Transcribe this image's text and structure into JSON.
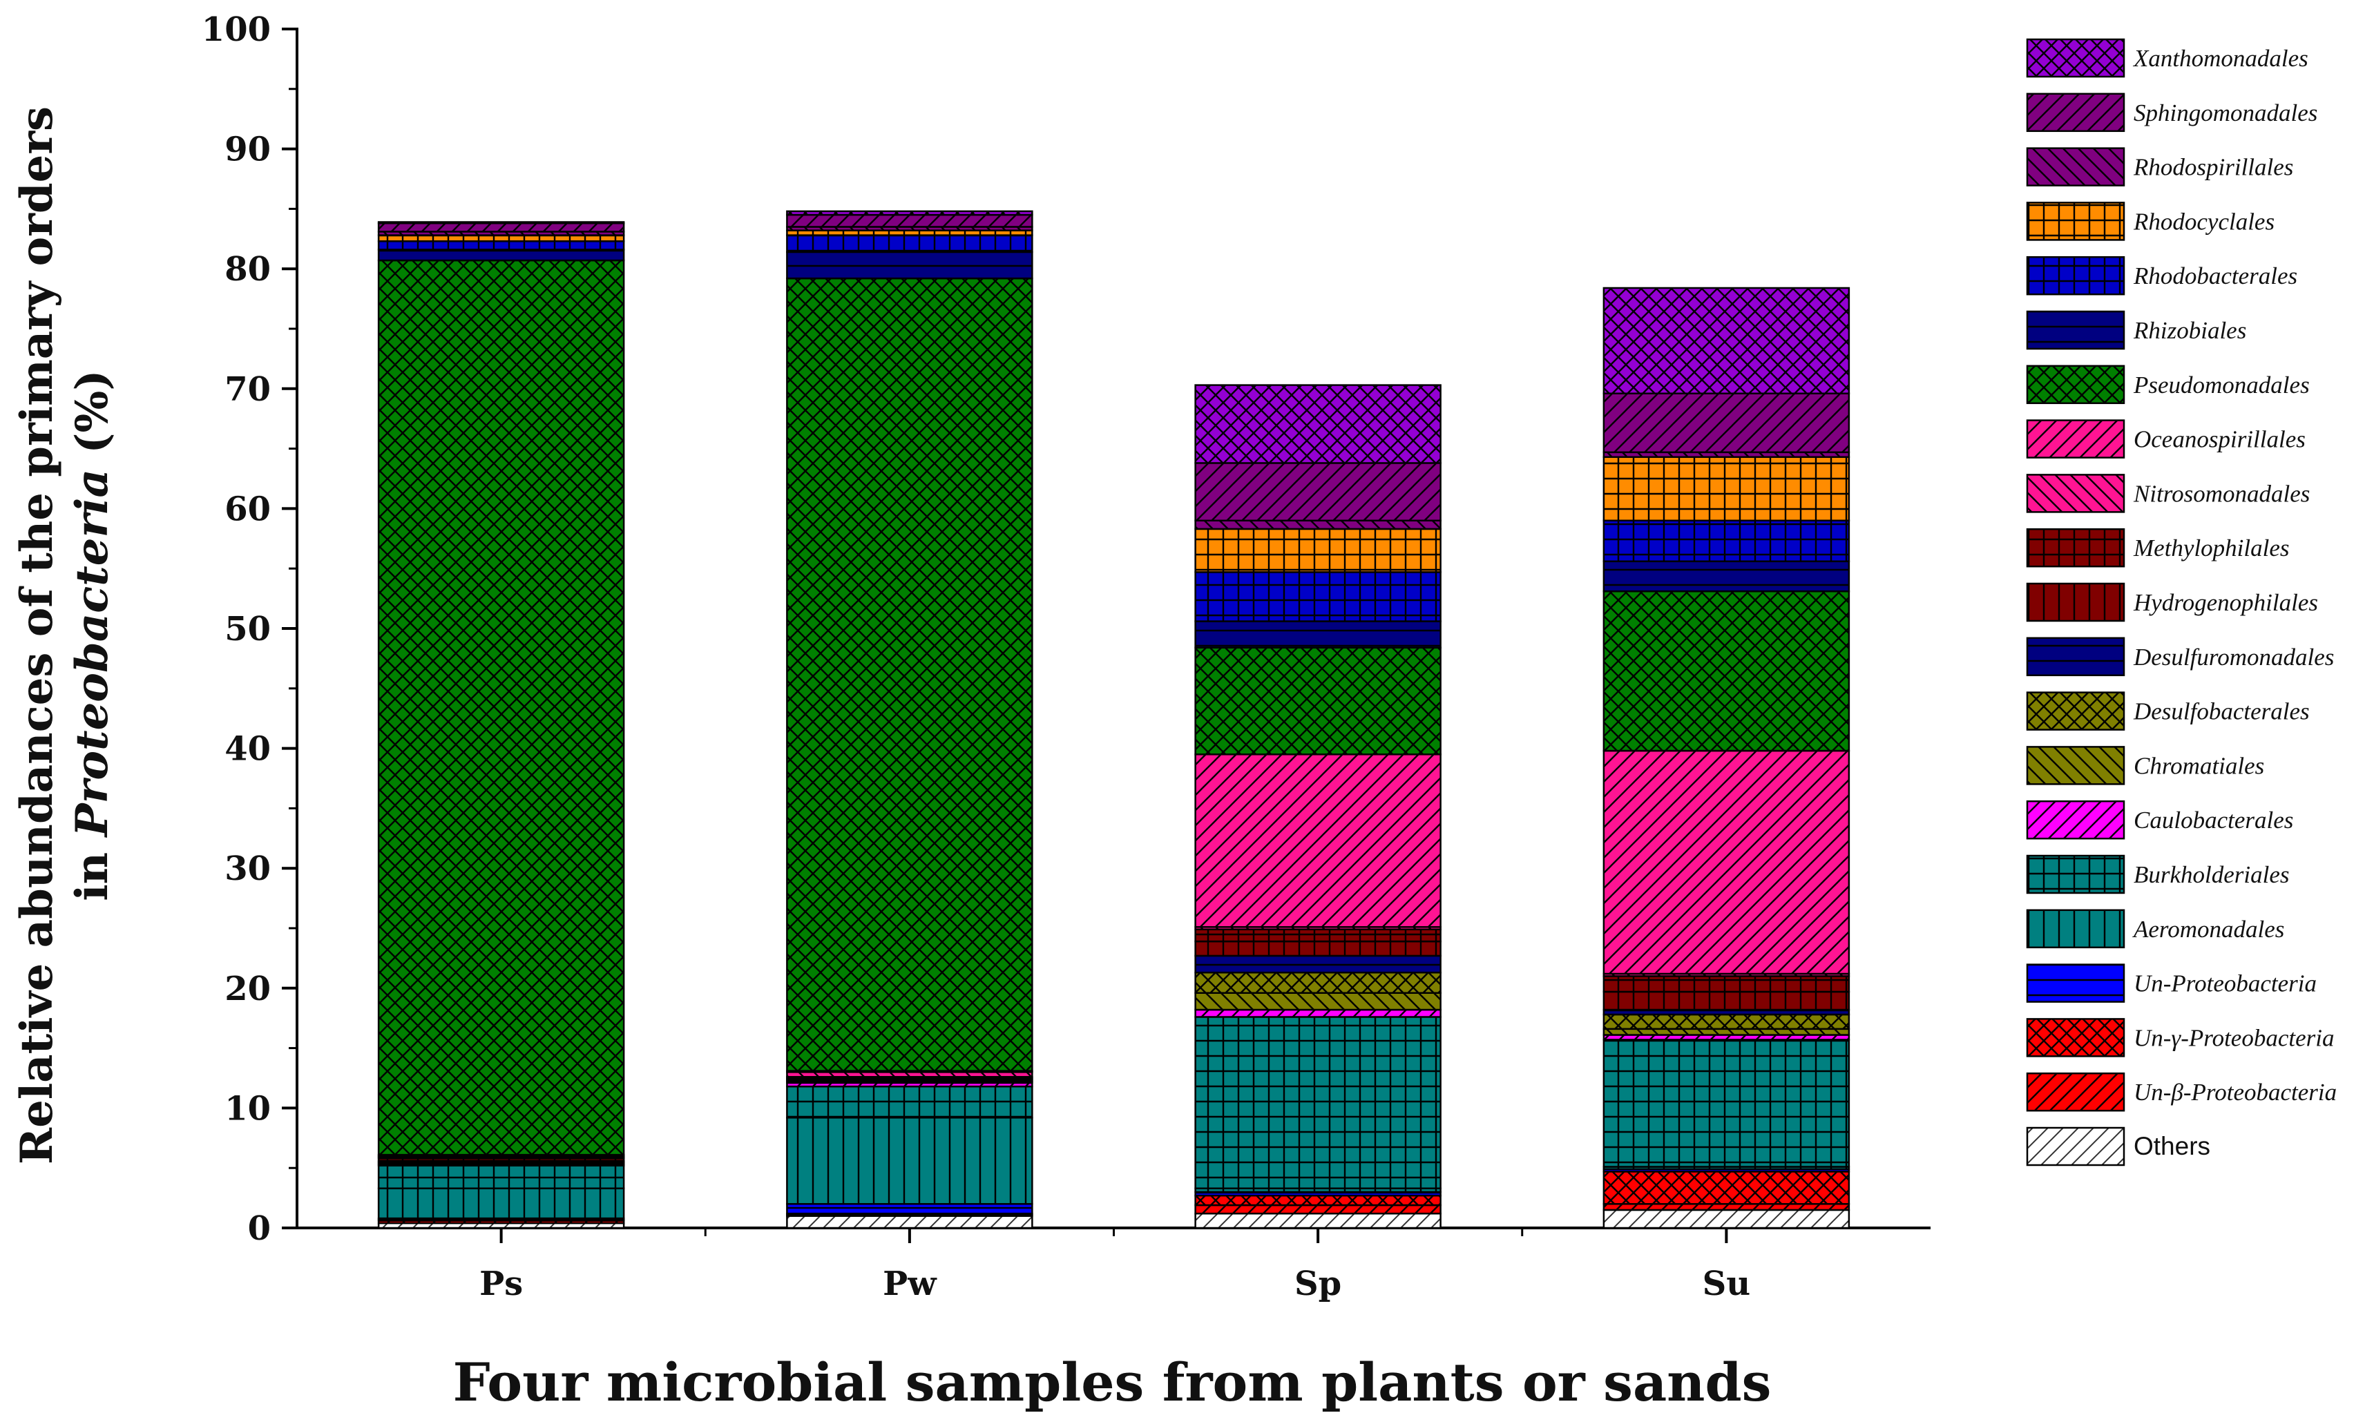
{
  "chart_data": {
    "type": "bar",
    "stacked": true,
    "title": "",
    "xlabel": "Four microbial samples from plants or sands",
    "ylabel_line1": "Relative abundances of the primary orders",
    "ylabel_line2_prefix": "in ",
    "ylabel_line2_italic": "Proteobacteria",
    "ylabel_line2_suffix": " (%)",
    "ylim": [
      0,
      100
    ],
    "yticks": [
      0,
      10,
      20,
      30,
      40,
      50,
      60,
      70,
      80,
      90,
      100
    ],
    "categories": [
      "Ps",
      "Pw",
      "Sp",
      "Su"
    ],
    "legend_position": "right",
    "series": [
      {
        "name": "Others",
        "color": "#ffffff",
        "pattern": "diag-thin",
        "values": [
          0.4,
          1.0,
          1.2,
          1.5
        ]
      },
      {
        "name": "Un-β-Proteobacteria",
        "color": "#ff0000",
        "pattern": "diag",
        "values": [
          0.2,
          0.1,
          0.7,
          0.5
        ]
      },
      {
        "name": "Un-γ-Proteobacteria",
        "color": "#ff0000",
        "pattern": "crosshatch",
        "values": [
          0.1,
          0.1,
          0.8,
          2.7
        ]
      },
      {
        "name": "Un-Proteobacteria",
        "color": "#0000ff",
        "pattern": "horizontal",
        "values": [
          0.1,
          0.8,
          0.3,
          0.2
        ]
      },
      {
        "name": "Aeromonadales",
        "color": "#008080",
        "pattern": "vertical",
        "values": [
          2.5,
          7.2,
          0.3,
          0.2
        ]
      },
      {
        "name": "Burkholderiales",
        "color": "#008080",
        "pattern": "grid",
        "values": [
          1.9,
          2.6,
          14.3,
          10.6
        ]
      },
      {
        "name": "Caulobacterales",
        "color": "#ff00ff",
        "pattern": "diag",
        "values": [
          0.1,
          0.3,
          0.6,
          0.4
        ]
      },
      {
        "name": "Chromatiales",
        "color": "#808000",
        "pattern": "diag-back",
        "values": [
          0.1,
          0.1,
          1.4,
          0.5
        ]
      },
      {
        "name": "Desulfobacterales",
        "color": "#808000",
        "pattern": "crosshatch",
        "values": [
          0.1,
          0.1,
          1.7,
          1.2
        ]
      },
      {
        "name": "Desulfuromonadales",
        "color": "#000080",
        "pattern": "horizontal",
        "values": [
          0.1,
          0.1,
          1.4,
          0.4
        ]
      },
      {
        "name": "Hydrogenophilales",
        "color": "#800000",
        "pattern": "vertical",
        "values": [
          0.2,
          0.1,
          1.2,
          1.5
        ]
      },
      {
        "name": "Methylophilales",
        "color": "#800000",
        "pattern": "grid",
        "values": [
          0.1,
          0.1,
          1.0,
          1.3
        ]
      },
      {
        "name": "Nitrosomonadales",
        "color": "#ff1493",
        "pattern": "diag-back",
        "values": [
          0.1,
          0.4,
          0.2,
          0.2
        ]
      },
      {
        "name": "Oceanospirillales",
        "color": "#ff1493",
        "pattern": "diag",
        "values": [
          0.1,
          0.1,
          14.4,
          18.6
        ]
      },
      {
        "name": "Pseudomonadales",
        "color": "#008000",
        "pattern": "crosshatch",
        "values": [
          74.6,
          66.1,
          8.9,
          13.3
        ]
      },
      {
        "name": "Rhizobiales",
        "color": "#000080",
        "pattern": "horizontal",
        "values": [
          0.9,
          2.2,
          2.2,
          2.5
        ]
      },
      {
        "name": "Rhodobacterales",
        "color": "#0000c8",
        "pattern": "grid",
        "values": [
          0.7,
          1.4,
          4.1,
          3.4
        ]
      },
      {
        "name": "Rhodocyclales",
        "color": "#ff8c00",
        "pattern": "grid",
        "values": [
          0.5,
          0.4,
          3.6,
          5.3
        ]
      },
      {
        "name": "Rhodospirillales",
        "color": "#800080",
        "pattern": "diag-back",
        "values": [
          0.3,
          0.3,
          0.7,
          0.4
        ]
      },
      {
        "name": "Sphingomonadales",
        "color": "#800080",
        "pattern": "diag",
        "values": [
          0.7,
          1.0,
          4.8,
          4.9
        ]
      },
      {
        "name": "Xanthomonadales",
        "color": "#9400d3",
        "pattern": "crosshatch",
        "values": [
          0.1,
          0.3,
          6.5,
          8.8
        ]
      }
    ],
    "legend_order": [
      "Xanthomonadales",
      "Sphingomonadales",
      "Rhodospirillales",
      "Rhodocyclales",
      "Rhodobacterales",
      "Rhizobiales",
      "Pseudomonadales",
      "Oceanospirillales",
      "Nitrosomonadales",
      "Methylophilales",
      "Hydrogenophilales",
      "Desulfuromonadales",
      "Desulfobacterales",
      "Chromatiales",
      "Caulobacterales",
      "Burkholderiales",
      "Aeromonadales",
      "Un-Proteobacteria",
      "Un-γ-Proteobacteria",
      "Un-β-Proteobacteria",
      "Others"
    ]
  }
}
